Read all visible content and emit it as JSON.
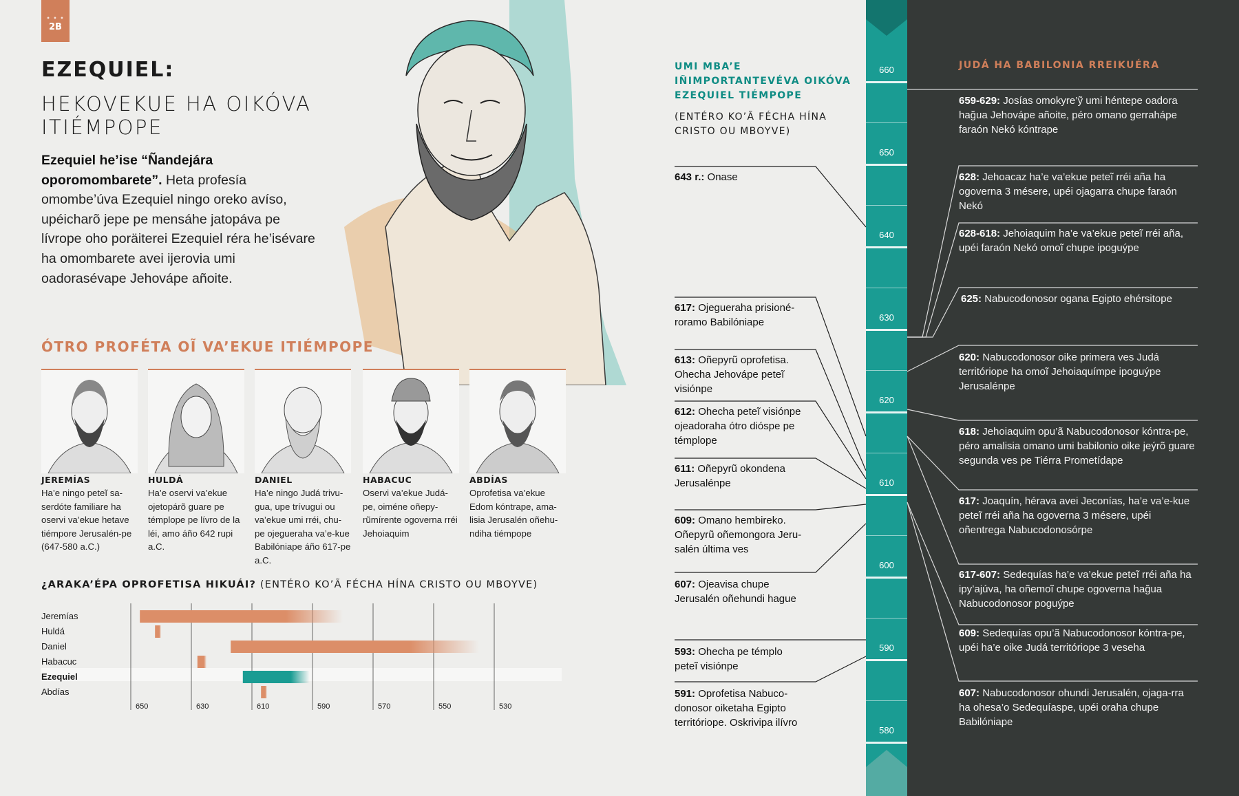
{
  "badge": "2B",
  "title": "EZEQUIEL:",
  "subtitle": "HEKOVEKUE HA OIKÓVA ITIÉMPOPE",
  "intro_bold": "Ezequiel he’ise “Ñandejára oporomombarete”.",
  "intro_text": " Heta profesía omombe’úva Ezequiel ningo oreko avíso, upéicharõ jepe pe mensáhe jatopáva pe lívrope oho poräiterei Ezequiel réra he’isévare ha omombarete avei ijerovia umi oadorasévape Jehovápe añoite.",
  "others_heading": "ÓTRO PROFÉTA OĨ VA’EKUE ITIÉMPOPE",
  "prophets": [
    {
      "name": "JEREMÍAS",
      "desc": "Ha’e ningo peteĩ sa-serdóte familiare ha oservi va’ekue hetave tiémpore Jerusalén-pe (647-580 a.C.)"
    },
    {
      "name": "HULDÁ",
      "desc": "Ha’e oservi va’ekue ojetopárõ guare pe témplope pe lívro de la léi, amo áño 642 rupi a.C."
    },
    {
      "name": "DANIEL",
      "desc": "Ha’e ningo Judá trivu-gua, upe trívugui ou va’ekue umi rréi, chu-pe ojegueraha va’e-kue Babilóniape áño 617-pe a.C."
    },
    {
      "name": "HABACUC",
      "desc": "Oservi va’ekue Judá-pe, oiméne oñepy-rũmírente ogoverna rréi Jehoiaquim"
    },
    {
      "name": "ABDÍAS",
      "desc": "Oprofetisa va’ekue Edom kóntrape, ama-lisia Jerusalén oñehu-ndiha tiémpope"
    }
  ],
  "prophets_question_bold": "¿ARAKA’ÉPA OPROFETISA HIKUÁI?",
  "prophets_question_rest": " (ENTÉRO KO’Ã FÉCHA HÍNA CRISTO OU MBOYVE)",
  "chart_data": {
    "type": "bar",
    "subtype": "horizontal-range",
    "categories": [
      "Jeremías",
      "Huldá",
      "Daniel",
      "Habacuc",
      "Ezequiel",
      "Abdías"
    ],
    "highlight": "Ezequiel",
    "ranges": [
      [
        647,
        580
      ],
      [
        642,
        640
      ],
      [
        617,
        535
      ],
      [
        628,
        625
      ],
      [
        613,
        591
      ],
      [
        607,
        605
      ]
    ],
    "x_ticks": [
      "650",
      "630",
      "610",
      "590",
      "570",
      "550",
      "530"
    ],
    "xlim": [
      650,
      530
    ],
    "colors": {
      "default": "#dc8e68",
      "highlight": "#1a9c93"
    }
  },
  "mid_heading": "UMI MBA’E IÑIMPORTANTEVÉVA OIKÓVA EZEQUIEL TIÉMPOPE",
  "mid_sub": "(ENTÉRO KO’Ã FÉCHA HÍNA CRISTO OU MBOYVE)",
  "ezekiel_events": [
    {
      "date": "643 r.:",
      "text": "Onase"
    },
    {
      "date": "617:",
      "text": "Ojegueraha prisioné-roramo Babilóniape"
    },
    {
      "date": "613:",
      "text": "Oñepyrũ oprofetisa. Ohecha Jehovápe peteĩ visiónpe"
    },
    {
      "date": "612:",
      "text": "Ohecha peteĩ visiónpe ojeadoraha ótro dióspe pe témplope"
    },
    {
      "date": "611:",
      "text": "Oñepyrũ okondena Jerusalénpe"
    },
    {
      "date": "609:",
      "text": "Omano hembireko. Oñepyrũ oñemongora Jeru-salén última ves"
    },
    {
      "date": "607:",
      "text": "Ojeavisa chupe Jerusalén oñehundi hague"
    },
    {
      "date": "593:",
      "text": "Ohecha pe témplo peteĩ visiónpe"
    },
    {
      "date": "591:",
      "text": "Oprofetisa Nabuco-donosor oiketaha Egipto territóriope. Oskrivipa ilívro"
    }
  ],
  "timeline_labels": [
    "660",
    "650",
    "640",
    "630",
    "620",
    "610",
    "600",
    "590",
    "580"
  ],
  "right_heading": "JUDÁ HA BABILONIA RREIKUÉRA",
  "kings_events": [
    {
      "date": "659-629:",
      "text": "Josías omokyre’ỹ umi héntepe oadora hağua Jehovápe añoite, péro omano gerrahápe faraón Nekó kóntrape"
    },
    {
      "date": "628:",
      "text": "Jehoacaz ha’e va’ekue peteĩ rréi aña ha ogoverna 3 mésere, upéi ojagarra chupe faraón Nekó"
    },
    {
      "date": "628-618:",
      "text": "Jehoiaquim ha’e va’ekue peteĩ rréi aña, upéi faraón Nekó omoĩ chupe ipoguýpe"
    },
    {
      "date": "625:",
      "text": "Nabucodonosor ogana Egipto ehérsitope"
    },
    {
      "date": "620:",
      "text": "Nabucodonosor oike primera ves Judá territóriope ha omoĩ Jehoiaquímpe ipoguýpe Jerusalénpe"
    },
    {
      "date": "618:",
      "text": "Jehoiaquim opu’ã Nabucodonosor kóntra-pe, péro amalisia omano umi babilonio oike jeýrõ guare segunda ves pe Tiérra Prometídape"
    },
    {
      "date": "617:",
      "text": "Joaquín, hérava avei Jeconías, ha’e va’e-kue peteĩ rréi aña ha ogoverna 3 mésere, upéi oñentrega Nabucodonosórpe"
    },
    {
      "date": "617-607:",
      "text": "Sedequías ha’e va’ekue peteĩ rréi aña ha ipy’ajúva, ha oñemoĩ chupe ogoverna hağua Nabucodonosor poguýpe"
    },
    {
      "date": "609:",
      "text": "Sedequías opu’ã Nabucodonosor kóntra-pe, upéi ha’e oike Judá territóriope 3 veseha"
    },
    {
      "date": "607:",
      "text": "Nabucodonosor ohundi Jerusalén, ojaga-rra ha ohesa’o Sedequíaspe, upéi oraha chupe Babilóniape"
    }
  ]
}
